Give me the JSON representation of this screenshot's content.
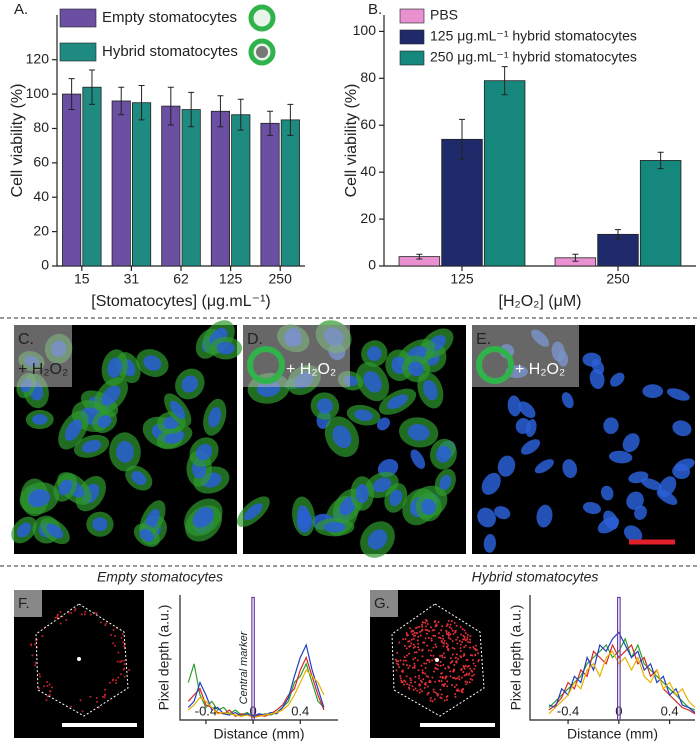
{
  "chart_data": [
    {
      "type": "bar",
      "panel_label": "A.",
      "xlabel": "[Stomatocytes] (μg.mL⁻¹)",
      "ylabel": "Cell viability (%)",
      "categories": [
        "15",
        "31",
        "62",
        "125",
        "250"
      ],
      "series": [
        {
          "name": "Empty stomatocytes",
          "color": "#6a4fa3",
          "values": [
            100,
            96,
            93,
            90,
            83
          ],
          "errors": [
            9,
            8,
            11,
            9,
            7
          ]
        },
        {
          "name": "Hybrid stomatocytes",
          "color": "#1e8a80",
          "values": [
            104,
            95,
            91,
            88,
            85
          ],
          "errors": [
            10,
            10,
            10,
            9,
            9
          ]
        }
      ],
      "ylim": [
        0,
        146
      ],
      "yticks": [
        0,
        20,
        40,
        60,
        80,
        100,
        120
      ]
    },
    {
      "type": "bar",
      "panel_label": "B.",
      "xlabel": "[H₂O₂] (μM)",
      "ylabel": "Cell viability (%)",
      "categories": [
        "125",
        "250"
      ],
      "series": [
        {
          "name": "PBS",
          "color": "#e890d0",
          "values": [
            4,
            3.5
          ],
          "errors": [
            1,
            1.5
          ]
        },
        {
          "name": "125 μg.mL⁻¹ hybrid stomatocytes",
          "color": "#1f2a6b",
          "values": [
            54,
            13.5
          ],
          "errors": [
            8.5,
            2
          ]
        },
        {
          "name": "250 μg.mL⁻¹ hybrid stomatocytes",
          "color": "#15877c",
          "values": [
            79,
            45
          ],
          "errors": [
            6,
            3.5
          ]
        }
      ],
      "ylim": [
        0,
        107
      ],
      "yticks": [
        0,
        20,
        40,
        60,
        80,
        100
      ]
    },
    {
      "type": "line",
      "panel_label": "F.",
      "title": "Empty stomatocytes",
      "xlabel": "Distance (mm)",
      "ylabel": "Pixel depth (a.u.)",
      "annotation": "Central marker",
      "xlim": [
        -0.62,
        0.72
      ],
      "xticks": [
        -0.4,
        0,
        0.4
      ],
      "ylim": [
        0,
        1
      ],
      "series": [
        {
          "color": "#2ca02c",
          "x": [
            -0.55,
            -0.5,
            -0.45,
            -0.4,
            -0.35,
            -0.3,
            -0.25,
            -0.2,
            -0.15,
            -0.1,
            -0.05,
            0,
            0.05,
            0.1,
            0.15,
            0.2,
            0.25,
            0.3,
            0.35,
            0.4,
            0.45,
            0.5,
            0.55,
            0.6
          ],
          "values": [
            0.3,
            0.45,
            0.2,
            0.1,
            0.15,
            0.08,
            0.1,
            0.05,
            0.08,
            0.04,
            0.06,
            0.02,
            0.03,
            0.05,
            0.04,
            0.06,
            0.1,
            0.15,
            0.3,
            0.35,
            0.45,
            0.3,
            0.15,
            0.1
          ]
        },
        {
          "color": "#d62728",
          "x": [
            -0.55,
            -0.5,
            -0.45,
            -0.4,
            -0.35,
            -0.3,
            -0.25,
            -0.2,
            -0.15,
            -0.1,
            -0.05,
            0,
            0.05,
            0.1,
            0.15,
            0.2,
            0.25,
            0.3,
            0.35,
            0.4,
            0.45,
            0.5,
            0.55,
            0.6
          ],
          "values": [
            0.15,
            0.2,
            0.25,
            0.12,
            0.1,
            0.06,
            0.05,
            0.08,
            0.03,
            0.05,
            0.04,
            0.02,
            0.04,
            0.03,
            0.05,
            0.08,
            0.12,
            0.2,
            0.25,
            0.4,
            0.5,
            0.35,
            0.2,
            0.08
          ]
        },
        {
          "color": "#1f3fbf",
          "x": [
            -0.55,
            -0.5,
            -0.45,
            -0.4,
            -0.35,
            -0.3,
            -0.25,
            -0.2,
            -0.15,
            -0.1,
            -0.05,
            0,
            0.05,
            0.1,
            0.15,
            0.2,
            0.25,
            0.3,
            0.35,
            0.4,
            0.45,
            0.5,
            0.55,
            0.6
          ],
          "values": [
            0.1,
            0.15,
            0.3,
            0.2,
            0.08,
            0.1,
            0.05,
            0.04,
            0.06,
            0.03,
            0.05,
            0.03,
            0.05,
            0.04,
            0.06,
            0.05,
            0.1,
            0.18,
            0.35,
            0.5,
            0.6,
            0.4,
            0.25,
            0.1
          ]
        },
        {
          "color": "#e8b300",
          "x": [
            -0.55,
            -0.5,
            -0.45,
            -0.4,
            -0.35,
            -0.3,
            -0.25,
            -0.2,
            -0.15,
            -0.1,
            -0.05,
            0,
            0.05,
            0.1,
            0.15,
            0.2,
            0.25,
            0.3,
            0.35,
            0.4,
            0.45,
            0.5,
            0.55,
            0.6
          ],
          "values": [
            0.08,
            0.12,
            0.18,
            0.15,
            0.1,
            0.05,
            0.06,
            0.05,
            0.04,
            0.03,
            0.04,
            0.02,
            0.03,
            0.04,
            0.05,
            0.06,
            0.08,
            0.12,
            0.2,
            0.3,
            0.4,
            0.35,
            0.3,
            0.2
          ]
        },
        {
          "color": "#6a3fa8",
          "x": [
            -0.01,
            -0.01,
            0.01,
            0.01
          ],
          "values": [
            0,
            0.98,
            0.98,
            0
          ]
        }
      ]
    },
    {
      "type": "line",
      "panel_label": "G.",
      "title": "Hybrid stomatocytes",
      "xlabel": "Distance (mm)",
      "ylabel": "Pixel depth (a.u.)",
      "xlim": [
        -0.7,
        0.6
      ],
      "xticks": [
        -0.4,
        0,
        0.4
      ],
      "ylim": [
        0,
        1
      ],
      "series": [
        {
          "color": "#2ca02c",
          "x": [
            -0.55,
            -0.5,
            -0.45,
            -0.4,
            -0.35,
            -0.3,
            -0.25,
            -0.2,
            -0.15,
            -0.1,
            -0.05,
            0,
            0.05,
            0.1,
            0.15,
            0.2,
            0.25,
            0.3,
            0.35,
            0.4,
            0.45,
            0.5,
            0.55,
            0.6
          ],
          "values": [
            0.1,
            0.15,
            0.2,
            0.25,
            0.3,
            0.35,
            0.45,
            0.5,
            0.55,
            0.6,
            0.5,
            0.55,
            0.65,
            0.5,
            0.6,
            0.45,
            0.4,
            0.35,
            0.3,
            0.25,
            0.2,
            0.15,
            0.1,
            0.08
          ]
        },
        {
          "color": "#d62728",
          "x": [
            -0.55,
            -0.5,
            -0.45,
            -0.4,
            -0.35,
            -0.3,
            -0.25,
            -0.2,
            -0.15,
            -0.1,
            -0.05,
            0,
            0.05,
            0.1,
            0.15,
            0.2,
            0.25,
            0.3,
            0.35,
            0.4,
            0.45,
            0.5,
            0.55,
            0.6
          ],
          "values": [
            0.08,
            0.12,
            0.18,
            0.3,
            0.25,
            0.4,
            0.35,
            0.55,
            0.5,
            0.45,
            0.6,
            0.5,
            0.55,
            0.6,
            0.45,
            0.5,
            0.35,
            0.4,
            0.25,
            0.2,
            0.15,
            0.1,
            0.08,
            0.05
          ]
        },
        {
          "color": "#1f3fbf",
          "x": [
            -0.55,
            -0.5,
            -0.45,
            -0.4,
            -0.35,
            -0.3,
            -0.25,
            -0.2,
            -0.15,
            -0.1,
            -0.05,
            0,
            0.05,
            0.1,
            0.15,
            0.2,
            0.25,
            0.3,
            0.35,
            0.4,
            0.45,
            0.5,
            0.55,
            0.6
          ],
          "values": [
            0.12,
            0.1,
            0.25,
            0.2,
            0.35,
            0.3,
            0.5,
            0.4,
            0.6,
            0.55,
            0.65,
            0.7,
            0.6,
            0.5,
            0.55,
            0.4,
            0.45,
            0.3,
            0.35,
            0.2,
            0.25,
            0.12,
            0.1,
            0.06
          ]
        },
        {
          "color": "#e8b300",
          "x": [
            -0.55,
            -0.5,
            -0.45,
            -0.4,
            -0.35,
            -0.3,
            -0.25,
            -0.2,
            -0.15,
            -0.1,
            -0.05,
            0,
            0.05,
            0.1,
            0.15,
            0.2,
            0.25,
            0.3,
            0.35,
            0.4,
            0.45,
            0.5,
            0.55,
            0.6
          ],
          "values": [
            0.05,
            0.1,
            0.15,
            0.2,
            0.3,
            0.25,
            0.4,
            0.45,
            0.35,
            0.5,
            0.55,
            0.45,
            0.5,
            0.4,
            0.5,
            0.35,
            0.3,
            0.4,
            0.25,
            0.3,
            0.2,
            0.25,
            0.15,
            0.1
          ]
        },
        {
          "color": "#6a3fa8",
          "x": [
            -0.01,
            -0.01,
            0.01,
            0.01
          ],
          "values": [
            0,
            0.98,
            0.98,
            0
          ]
        }
      ]
    }
  ],
  "images": [
    {
      "label": "C.",
      "annotation": "+ H₂O₂"
    },
    {
      "label": "D.",
      "annotation": "+ H₂O₂"
    },
    {
      "label": "E.",
      "annotation": "+ H₂O₂"
    }
  ]
}
